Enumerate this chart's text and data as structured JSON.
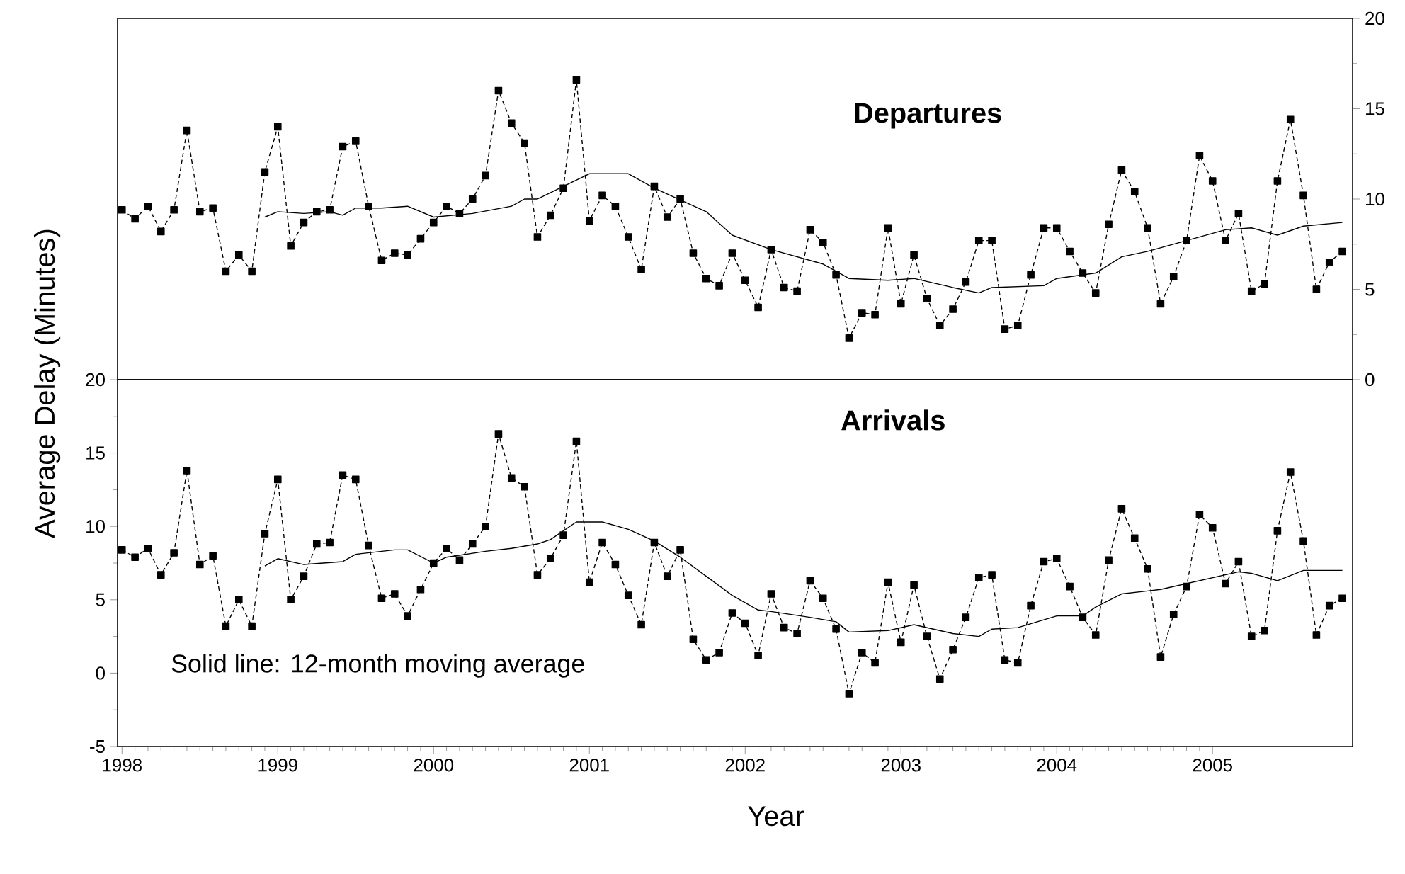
{
  "chart_data": [
    {
      "type": "line",
      "title": "Departures",
      "x": [
        "1998-01",
        "1998-02",
        "1998-03",
        "1998-04",
        "1998-05",
        "1998-06",
        "1998-07",
        "1998-08",
        "1998-09",
        "1998-10",
        "1998-11",
        "1998-12",
        "1999-01",
        "1999-02",
        "1999-03",
        "1999-04",
        "1999-05",
        "1999-06",
        "1999-07",
        "1999-08",
        "1999-09",
        "1999-10",
        "1999-11",
        "1999-12",
        "2000-01",
        "2000-02",
        "2000-03",
        "2000-04",
        "2000-05",
        "2000-06",
        "2000-07",
        "2000-08",
        "2000-09",
        "2000-10",
        "2000-11",
        "2000-12",
        "2001-01",
        "2001-02",
        "2001-03",
        "2001-04",
        "2001-05",
        "2001-06",
        "2001-07",
        "2001-08",
        "2001-09",
        "2001-10",
        "2001-11",
        "2001-12",
        "2002-01",
        "2002-02",
        "2002-03",
        "2002-04",
        "2002-05",
        "2002-06",
        "2002-07",
        "2002-08",
        "2002-09",
        "2002-10",
        "2002-11",
        "2002-12",
        "2003-01",
        "2003-02",
        "2003-03",
        "2003-04",
        "2003-05",
        "2003-06",
        "2003-07",
        "2003-08",
        "2003-09",
        "2003-10",
        "2003-11",
        "2003-12",
        "2004-01",
        "2004-02",
        "2004-03",
        "2004-04",
        "2004-05",
        "2004-06",
        "2004-07",
        "2004-08",
        "2004-09",
        "2004-10",
        "2004-11",
        "2004-12",
        "2005-01",
        "2005-02",
        "2005-03",
        "2005-04",
        "2005-05",
        "2005-06",
        "2005-07",
        "2005-08",
        "2005-09",
        "2005-10",
        "2005-11"
      ],
      "xlim": [
        "1997-12-21",
        "2005-11-25"
      ],
      "ylim": [
        0,
        20
      ],
      "yticks": [
        0,
        5,
        10,
        15,
        20
      ],
      "tick_labels": "y",
      "series": [
        {
          "color": "#000000",
          "line_style": "dashed",
          "marker": "square",
          "values": [
            9.4,
            8.9,
            9.6,
            8.2,
            9.4,
            13.8,
            9.3,
            9.5,
            6.0,
            6.9,
            6.0,
            11.5,
            14.0,
            7.4,
            8.7,
            9.3,
            9.4,
            12.9,
            13.2,
            9.6,
            6.6,
            7.0,
            6.9,
            7.8,
            8.7,
            9.6,
            9.2,
            10.0,
            11.3,
            16.0,
            14.2,
            13.1,
            7.9,
            9.1,
            10.6,
            16.6,
            8.8,
            10.2,
            9.6,
            7.9,
            6.1,
            10.7,
            9.0,
            10.0,
            7.0,
            5.6,
            5.2,
            7.0,
            5.5,
            4.0,
            7.2,
            5.1,
            4.9,
            8.3,
            7.6,
            5.8,
            2.3,
            3.7,
            3.6,
            8.4,
            4.2,
            6.9,
            4.5,
            3.0,
            3.9,
            5.4,
            7.7,
            7.7,
            2.8,
            3.0,
            5.8,
            8.4,
            8.4,
            7.1,
            5.9,
            4.8,
            8.6,
            11.6,
            10.4,
            8.4,
            4.2,
            5.7,
            7.7,
            12.4,
            11.0,
            7.7,
            9.2,
            4.9,
            5.3,
            11.0,
            14.4,
            10.2,
            5.0,
            6.5,
            7.1
          ]
        },
        {
          "color": "#000000",
          "line_style": "solid",
          "marker": "none",
          "x": [
            "1998-12",
            "1999-01",
            "1999-03",
            "1999-05",
            "1999-06",
            "1999-07",
            "1999-09",
            "1999-11",
            "2000-01",
            "2000-04",
            "2000-07",
            "2000-08",
            "2000-09",
            "2000-11",
            "2001-01",
            "2001-04",
            "2001-06",
            "2001-10",
            "2001-12",
            "2002-03",
            "2002-07",
            "2002-09",
            "2002-12",
            "2003-02",
            "2003-05",
            "2003-07",
            "2003-08",
            "2003-12",
            "2004-01",
            "2004-04",
            "2004-06",
            "2004-08",
            "2004-11",
            "2005-02",
            "2005-04",
            "2005-06",
            "2005-08",
            "2005-11"
          ],
          "values": [
            9.0,
            9.3,
            9.2,
            9.3,
            9.1,
            9.5,
            9.5,
            9.6,
            9.0,
            9.2,
            9.6,
            10.0,
            10.0,
            10.7,
            11.4,
            11.4,
            10.6,
            9.3,
            8.0,
            7.2,
            6.4,
            5.6,
            5.5,
            5.6,
            5.1,
            4.8,
            5.1,
            5.2,
            5.6,
            5.9,
            6.8,
            7.1,
            7.7,
            8.3,
            8.4,
            8.0,
            8.5,
            8.7
          ]
        }
      ]
    },
    {
      "type": "line",
      "title": "Arrivals",
      "xlabel": "Year",
      "ylabel": "Average Delay (Minutes)",
      "annotations": [
        "Solid line: 12-month moving average"
      ],
      "x": [
        "1998-01",
        "1998-02",
        "1998-03",
        "1998-04",
        "1998-05",
        "1998-06",
        "1998-07",
        "1998-08",
        "1998-09",
        "1998-10",
        "1998-11",
        "1998-12",
        "1999-01",
        "1999-02",
        "1999-03",
        "1999-04",
        "1999-05",
        "1999-06",
        "1999-07",
        "1999-08",
        "1999-09",
        "1999-10",
        "1999-11",
        "1999-12",
        "2000-01",
        "2000-02",
        "2000-03",
        "2000-04",
        "2000-05",
        "2000-06",
        "2000-07",
        "2000-08",
        "2000-09",
        "2000-10",
        "2000-11",
        "2000-12",
        "2001-01",
        "2001-02",
        "2001-03",
        "2001-04",
        "2001-05",
        "2001-06",
        "2001-07",
        "2001-08",
        "2001-09",
        "2001-10",
        "2001-11",
        "2001-12",
        "2002-01",
        "2002-02",
        "2002-03",
        "2002-04",
        "2002-05",
        "2002-06",
        "2002-07",
        "2002-08",
        "2002-09",
        "2002-10",
        "2002-11",
        "2002-12",
        "2003-01",
        "2003-02",
        "2003-03",
        "2003-04",
        "2003-05",
        "2003-06",
        "2003-07",
        "2003-08",
        "2003-09",
        "2003-10",
        "2003-11",
        "2003-12",
        "2004-01",
        "2004-02",
        "2004-03",
        "2004-04",
        "2004-05",
        "2004-06",
        "2004-07",
        "2004-08",
        "2004-09",
        "2004-10",
        "2004-11",
        "2004-12",
        "2005-01",
        "2005-02",
        "2005-03",
        "2005-04",
        "2005-05",
        "2005-06",
        "2005-07",
        "2005-08",
        "2005-09",
        "2005-10",
        "2005-11"
      ],
      "xlim": [
        "1997-12-21",
        "2005-11-25"
      ],
      "xticks": [
        "1998",
        "1999",
        "2000",
        "2001",
        "2002",
        "2003",
        "2004",
        "2005"
      ],
      "ylim": [
        -5,
        20
      ],
      "yticks": [
        -5,
        0,
        5,
        10,
        15,
        20
      ],
      "series": [
        {
          "color": "#000000",
          "line_style": "dashed",
          "marker": "square",
          "values": [
            8.4,
            7.9,
            8.5,
            6.7,
            8.2,
            13.8,
            7.4,
            8.0,
            3.2,
            5.0,
            3.2,
            9.5,
            13.2,
            5.0,
            6.6,
            8.8,
            8.9,
            13.5,
            13.2,
            8.7,
            5.1,
            5.4,
            3.9,
            5.7,
            7.5,
            8.5,
            7.7,
            8.8,
            10.0,
            16.3,
            13.3,
            12.7,
            6.7,
            7.8,
            9.4,
            15.8,
            6.2,
            8.9,
            7.4,
            5.3,
            3.3,
            8.9,
            6.6,
            8.4,
            2.3,
            0.9,
            1.4,
            4.1,
            3.4,
            1.2,
            5.4,
            3.1,
            2.7,
            6.3,
            5.1,
            3.0,
            -1.4,
            1.4,
            0.7,
            6.2,
            2.1,
            6.0,
            2.5,
            -0.4,
            1.6,
            3.8,
            6.5,
            6.7,
            0.9,
            0.7,
            4.6,
            7.6,
            7.8,
            5.9,
            3.8,
            2.6,
            7.7,
            11.2,
            9.2,
            7.1,
            1.1,
            4.0,
            5.9,
            10.8,
            9.9,
            6.1,
            7.6,
            2.5,
            2.9,
            9.7,
            13.7,
            9.0,
            2.6,
            4.6,
            5.1
          ]
        },
        {
          "color": "#000000",
          "line_style": "solid",
          "marker": "none",
          "x": [
            "1998-12",
            "1999-01",
            "1999-03",
            "1999-06",
            "1999-07",
            "1999-10",
            "1999-11",
            "2000-01",
            "2000-02",
            "2000-05",
            "2000-07",
            "2000-09",
            "2000-10",
            "2000-12",
            "2001-02",
            "2001-04",
            "2001-06",
            "2001-08",
            "2001-10",
            "2001-12",
            "2002-02",
            "2002-03",
            "2002-06",
            "2002-08",
            "2002-09",
            "2002-12",
            "2003-02",
            "2003-05",
            "2003-07",
            "2003-08",
            "2003-10",
            "2004-01",
            "2004-03",
            "2004-04",
            "2004-06",
            "2004-08",
            "2004-09",
            "2004-11",
            "2005-01",
            "2005-03",
            "2005-04",
            "2005-06",
            "2005-08",
            "2005-11"
          ],
          "values": [
            7.3,
            7.8,
            7.4,
            7.6,
            8.1,
            8.4,
            8.4,
            7.5,
            7.9,
            8.3,
            8.5,
            8.8,
            9.1,
            10.3,
            10.3,
            9.8,
            9.0,
            7.9,
            6.6,
            5.3,
            4.3,
            4.2,
            3.8,
            3.5,
            2.8,
            2.9,
            3.3,
            2.7,
            2.5,
            3.0,
            3.1,
            3.9,
            3.9,
            4.5,
            5.4,
            5.6,
            5.7,
            6.1,
            6.5,
            6.9,
            6.8,
            6.3,
            7.0,
            7.0
          ]
        }
      ]
    }
  ]
}
